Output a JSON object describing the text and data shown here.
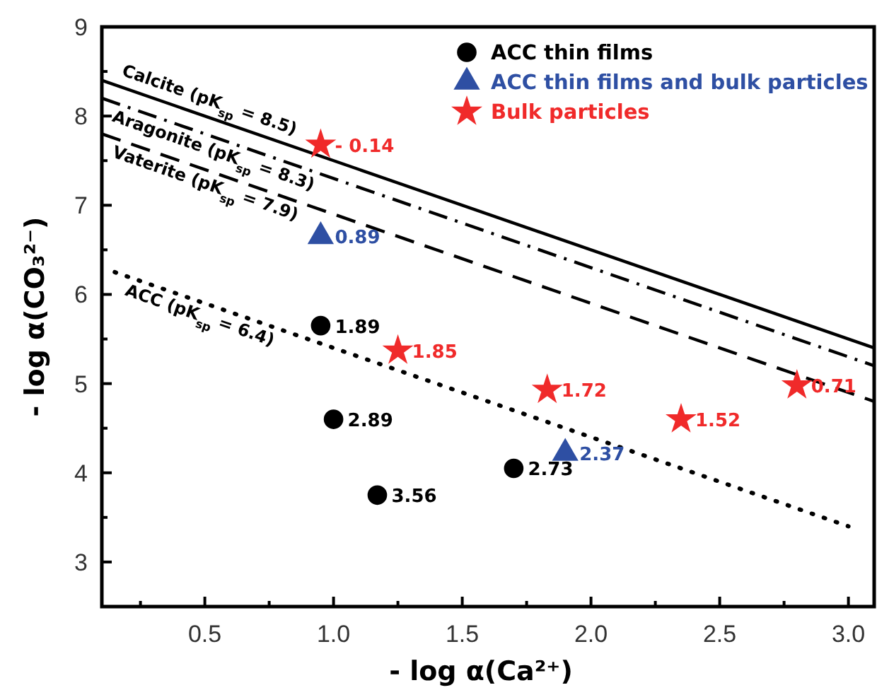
{
  "chart_data": {
    "type": "scatter",
    "xlabel": "- log α(Ca²⁺)",
    "ylabel": "- log α(CO₃²⁻)",
    "xlim": [
      0.1,
      3.1
    ],
    "ylim": [
      2.5,
      9
    ],
    "xticks": [
      {
        "value": 0.25,
        "label": null
      },
      0.5,
      {
        "value": 0.75,
        "label": null
      },
      {
        "value": 1,
        "label": "1.0"
      },
      {
        "value": 1.25,
        "label": null
      },
      1.5,
      {
        "value": 1.75,
        "label": null
      },
      {
        "value": 2,
        "label": "2.0"
      },
      {
        "value": 2.25,
        "label": null
      },
      2.5,
      {
        "value": 2.75,
        "label": null
      },
      {
        "value": 3,
        "label": "3.0"
      }
    ],
    "yticks": [
      3,
      {
        "value": 3.5,
        "label": null
      },
      4,
      {
        "value": 4.5,
        "label": null
      },
      5,
      {
        "value": 5.5,
        "label": null
      },
      6,
      {
        "value": 6.5,
        "label": null
      },
      7,
      {
        "value": 7.5,
        "label": null
      },
      8,
      {
        "value": 8.5,
        "label": null
      },
      9
    ],
    "grid": false,
    "legend": "top right",
    "series": [
      {
        "name": "Calcite (pK$_{sp}$ = 8.5)",
        "type": "line",
        "color": "#000000",
        "line_style": "solid",
        "marker": "none",
        "x": [
          0.1,
          3.1
        ],
        "values": [
          8.4,
          5.4
        ]
      },
      {
        "name": "Aragonite (pK$_{sp}$ = 8.3)",
        "type": "line",
        "color": "#000000",
        "line_style": "dashdot",
        "marker": "none",
        "x": [
          0.1,
          3.1
        ],
        "values": [
          8.2,
          5.2
        ]
      },
      {
        "name": "Vaterite (pK$_{sp}$ = 7.9)",
        "type": "line",
        "color": "#000000",
        "line_style": "dashed",
        "marker": "none",
        "x": [
          0.1,
          3.1
        ],
        "values": [
          7.8,
          4.8
        ]
      },
      {
        "name": "ACC (pK$_{sp}$ = 6.4)",
        "type": "line",
        "color": "#000000",
        "line_style": "dotted",
        "marker": "none",
        "x": [
          0.15,
          3.0
        ],
        "values": [
          6.25,
          3.4
        ]
      },
      {
        "name": "ACC thin films",
        "color": "#000000",
        "marker": "circle",
        "x": [
          0.95,
          1.0,
          1.17,
          1.7
        ],
        "values": [
          5.65,
          4.6,
          3.75,
          4.05
        ]
      },
      {
        "name": "ACC thin films and bulk particles",
        "color": "#2e4fa3",
        "marker": "triangle",
        "x": [
          0.95,
          1.9
        ],
        "values": [
          6.65,
          4.22
        ]
      },
      {
        "name": "Bulk particles",
        "color": "#f02a2a",
        "marker": "star",
        "x": [
          0.95,
          1.25,
          1.83,
          2.35,
          2.8
        ],
        "values": [
          7.68,
          5.37,
          4.93,
          4.6,
          4.98
        ]
      }
    ],
    "annotations": [
      {
        "text": "1.89",
        "x": 0.95,
        "y": 5.65
      },
      {
        "text": "2.89",
        "x": 1.0,
        "y": 4.6
      },
      {
        "text": "3.56",
        "x": 1.17,
        "y": 3.75
      },
      {
        "text": "2.73",
        "x": 1.7,
        "y": 4.05
      },
      {
        "text": "0.89",
        "x": 0.95,
        "y": 6.65
      },
      {
        "text": "2.37",
        "x": 1.9,
        "y": 4.22
      },
      {
        "text": "- 0.14",
        "x": 0.95,
        "y": 7.68
      },
      {
        "text": "1.85",
        "x": 1.25,
        "y": 5.37
      },
      {
        "text": "1.72",
        "x": 1.83,
        "y": 4.93
      },
      {
        "text": "1.52",
        "x": 2.35,
        "y": 4.6
      },
      {
        "text": "0.71",
        "x": 2.8,
        "y": 4.98
      }
    ]
  }
}
